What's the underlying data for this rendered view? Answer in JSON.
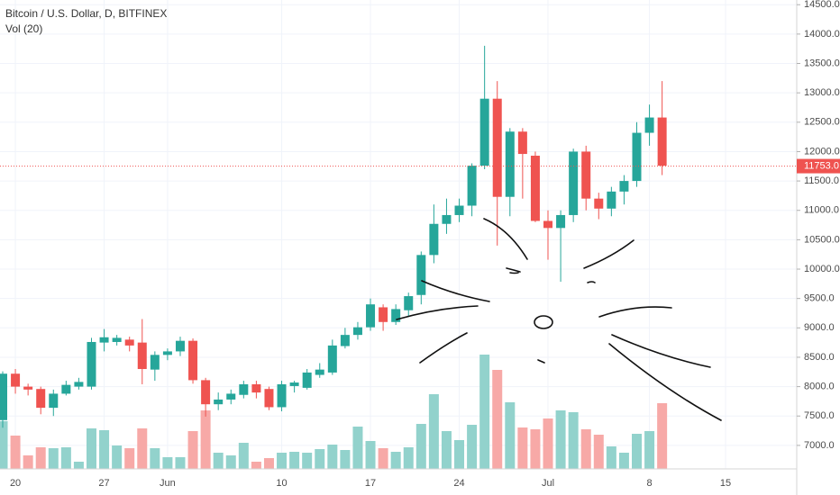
{
  "chart_data": {
    "type": "candlestick",
    "title": "Bitcoin / U.S. Dollar, D, BITFINEX",
    "volume_label": "Vol (20)",
    "categories": [
      null,
      "20",
      null,
      null,
      null,
      null,
      null,
      null,
      "27",
      null,
      null,
      null,
      null,
      "Jun",
      null,
      null,
      null,
      null,
      null,
      null,
      null,
      null,
      "10",
      null,
      null,
      null,
      null,
      null,
      null,
      "17",
      null,
      null,
      null,
      null,
      null,
      null,
      "24",
      null,
      null,
      null,
      null,
      null,
      null,
      "Jul",
      null,
      null,
      null,
      null,
      null,
      null,
      null,
      "8",
      null,
      null,
      null,
      null,
      null,
      "15"
    ],
    "open": [
      7430,
      8220,
      8000,
      7960,
      7640,
      7880,
      8000,
      8000,
      8750,
      8760,
      8800,
      8750,
      8290,
      8540,
      8600,
      8780,
      8110,
      7700,
      7780,
      7860,
      8040,
      7960,
      7650,
      8010,
      7980,
      8200,
      8240,
      8690,
      8880,
      9010,
      9350,
      9100,
      9300,
      9560,
      10240,
      10770,
      10920,
      11080,
      11760,
      12900,
      11230,
      12340,
      11930,
      10820,
      10700,
      10920,
      12000,
      11200,
      11030,
      11320,
      11500,
      12320,
      12580,
      null,
      null,
      null,
      null,
      null
    ],
    "high": [
      8260,
      8300,
      8050,
      8000,
      7950,
      8100,
      8150,
      8830,
      8980,
      8880,
      8850,
      9150,
      8600,
      8650,
      8850,
      8820,
      8150,
      7900,
      7950,
      8100,
      8100,
      8000,
      8100,
      8100,
      8300,
      8400,
      8800,
      9000,
      9100,
      9500,
      9400,
      9400,
      9600,
      10300,
      11100,
      11200,
      11200,
      11800,
      13800,
      13200,
      12400,
      12400,
      12000,
      11000,
      11000,
      12050,
      12100,
      11300,
      11400,
      11600,
      12500,
      12800,
      13200,
      null,
      null,
      null,
      null,
      null
    ],
    "low": [
      7300,
      7880,
      7850,
      7530,
      7500,
      7850,
      7950,
      7950,
      8600,
      8700,
      8600,
      8040,
      8100,
      8450,
      8520,
      8050,
      7490,
      7600,
      7700,
      7800,
      7800,
      7600,
      7580,
      7900,
      7950,
      8150,
      8200,
      8650,
      8800,
      8950,
      8950,
      9050,
      9200,
      9400,
      10100,
      10600,
      10800,
      10900,
      11700,
      10400,
      10900,
      11200,
      10800,
      10160,
      9785,
      10800,
      11000,
      10850,
      10900,
      11100,
      11400,
      12100,
      11600,
      null,
      null,
      null,
      null,
      null
    ],
    "close": [
      8220,
      8000,
      7950,
      7640,
      7880,
      8030,
      8080,
      8760,
      8840,
      8830,
      8700,
      8300,
      8540,
      8600,
      8780,
      8110,
      7700,
      7780,
      7880,
      8040,
      7900,
      7650,
      8040,
      8070,
      8240,
      8290,
      8700,
      8880,
      9010,
      9400,
      9100,
      9320,
      9540,
      10240,
      10770,
      10920,
      11080,
      11760,
      12900,
      11230,
      12340,
      11960,
      10820,
      10700,
      10920,
      12000,
      11200,
      11030,
      11320,
      11500,
      12320,
      12580,
      11760,
      null,
      null,
      null,
      null,
      null
    ],
    "volume": [
      53,
      37,
      15,
      24,
      23,
      24,
      8,
      45,
      43,
      26,
      23,
      45,
      23,
      13,
      13,
      42,
      65,
      18,
      15,
      29,
      8,
      12,
      18,
      19,
      18,
      22,
      27,
      21,
      47,
      31,
      23,
      19,
      24,
      50,
      83,
      42,
      32,
      49,
      127,
      110,
      74,
      46,
      44,
      56,
      65,
      63,
      44,
      38,
      25,
      18,
      39,
      42,
      73,
      null,
      null,
      null,
      null,
      null
    ],
    "up_color": "#26a69a",
    "down_color": "#ef5350",
    "up_volume_color": "#92d2cc",
    "down_volume_color": "#f7a9a7",
    "last_price": 11753,
    "last_price_label": "11753.0",
    "ylim": [
      6600,
      14580
    ],
    "yticks": [
      {
        "value": 7000,
        "label": "7000.0"
      },
      {
        "value": 7500,
        "label": "7500.0"
      },
      {
        "value": 8000,
        "label": "8000.0"
      },
      {
        "value": 8500,
        "label": "8500.0"
      },
      {
        "value": 9000,
        "label": "9000.0"
      },
      {
        "value": 9500,
        "label": "9500.0"
      },
      {
        "value": 10000,
        "label": "10000.0"
      },
      {
        "value": 10500,
        "label": "10500.0"
      },
      {
        "value": 11000,
        "label": "11000.0"
      },
      {
        "value": 11500,
        "label": "11500.0"
      },
      {
        "value": 12000,
        "label": "12000.0"
      },
      {
        "value": 12500,
        "label": "12500.0"
      },
      {
        "value": 13000,
        "label": "13000.0"
      },
      {
        "value": 13500,
        "label": "13500.0"
      },
      {
        "value": 14000,
        "label": "14000.0"
      },
      {
        "value": 14500,
        "label": "14500.0"
      }
    ],
    "grid": true
  }
}
